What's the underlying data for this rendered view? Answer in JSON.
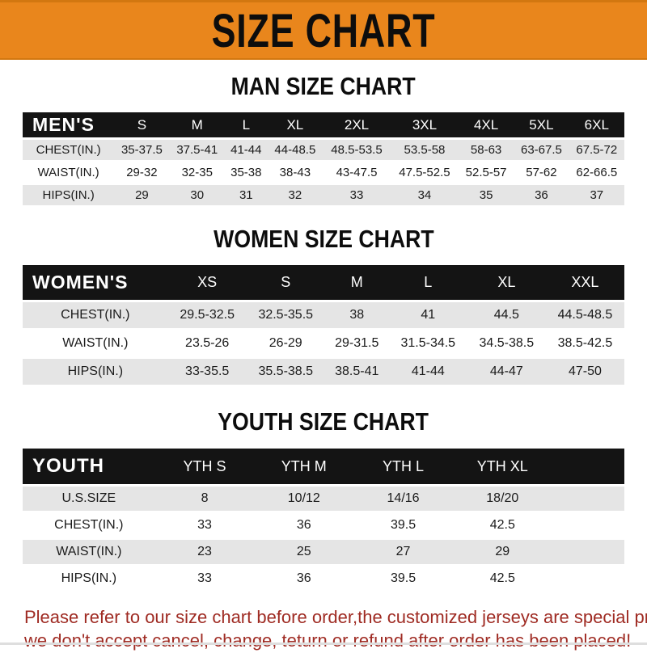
{
  "banner": {
    "title": "SIZE CHART"
  },
  "sections": [
    {
      "id": "men",
      "title": "MAN SIZE CHART",
      "header_label": "MEN'S",
      "columns": [
        "S",
        "M",
        "L",
        "XL",
        "2XL",
        "3XL",
        "4XL",
        "5XL",
        "6XL"
      ],
      "rows": [
        {
          "label": "CHEST(IN.)",
          "values": [
            "35-37.5",
            "37.5-41",
            "41-44",
            "44-48.5",
            "48.5-53.5",
            "53.5-58",
            "58-63",
            "63-67.5",
            "67.5-72"
          ]
        },
        {
          "label": "WAIST(IN.)",
          "values": [
            "29-32",
            "32-35",
            "35-38",
            "38-43",
            "43-47.5",
            "47.5-52.5",
            "52.5-57",
            "57-62",
            "62-66.5"
          ]
        },
        {
          "label": "HIPS(IN.)",
          "values": [
            "29",
            "30",
            "31",
            "32",
            "33",
            "34",
            "35",
            "36",
            "37"
          ]
        }
      ]
    },
    {
      "id": "women",
      "title": "WOMEN SIZE CHART",
      "header_label": "WOMEN'S",
      "columns": [
        "XS",
        "S",
        "M",
        "L",
        "XL",
        "XXL"
      ],
      "rows": [
        {
          "label": "CHEST(IN.)",
          "values": [
            "29.5-32.5",
            "32.5-35.5",
            "38",
            "41",
            "44.5",
            "44.5-48.5"
          ]
        },
        {
          "label": "WAIST(IN.)",
          "values": [
            "23.5-26",
            "26-29",
            "29-31.5",
            "31.5-34.5",
            "34.5-38.5",
            "38.5-42.5"
          ]
        },
        {
          "label": "HIPS(IN.)",
          "values": [
            "33-35.5",
            "35.5-38.5",
            "38.5-41",
            "41-44",
            "44-47",
            "47-50"
          ]
        }
      ]
    },
    {
      "id": "youth",
      "title": "YOUTH SIZE CHART",
      "header_label": "YOUTH",
      "columns": [
        "YTH S",
        "YTH M",
        "YTH L",
        "YTH XL"
      ],
      "has_spacer_column": true,
      "rows": [
        {
          "label": "U.S.SIZE",
          "values": [
            "8",
            "10/12",
            "14/16",
            "18/20"
          ]
        },
        {
          "label": "CHEST(IN.)",
          "values": [
            "33",
            "36",
            "39.5",
            "42.5"
          ]
        },
        {
          "label": "WAIST(IN.)",
          "values": [
            "23",
            "25",
            "27",
            "29"
          ]
        },
        {
          "label": "HIPS(IN.)",
          "values": [
            "33",
            "36",
            "39.5",
            "42.5"
          ]
        }
      ]
    }
  ],
  "footer": {
    "line1": "Please refer to our size chart before order,the customized jerseys are special products,",
    "line2": "we don't accept cancel, change, teturn or refund after order has been placed!"
  },
  "colors": {
    "banner_orange": "#E9861C",
    "bar_black": "#141414",
    "row_gray": "#E5E5E5",
    "footer_red": "#9F2B23"
  }
}
